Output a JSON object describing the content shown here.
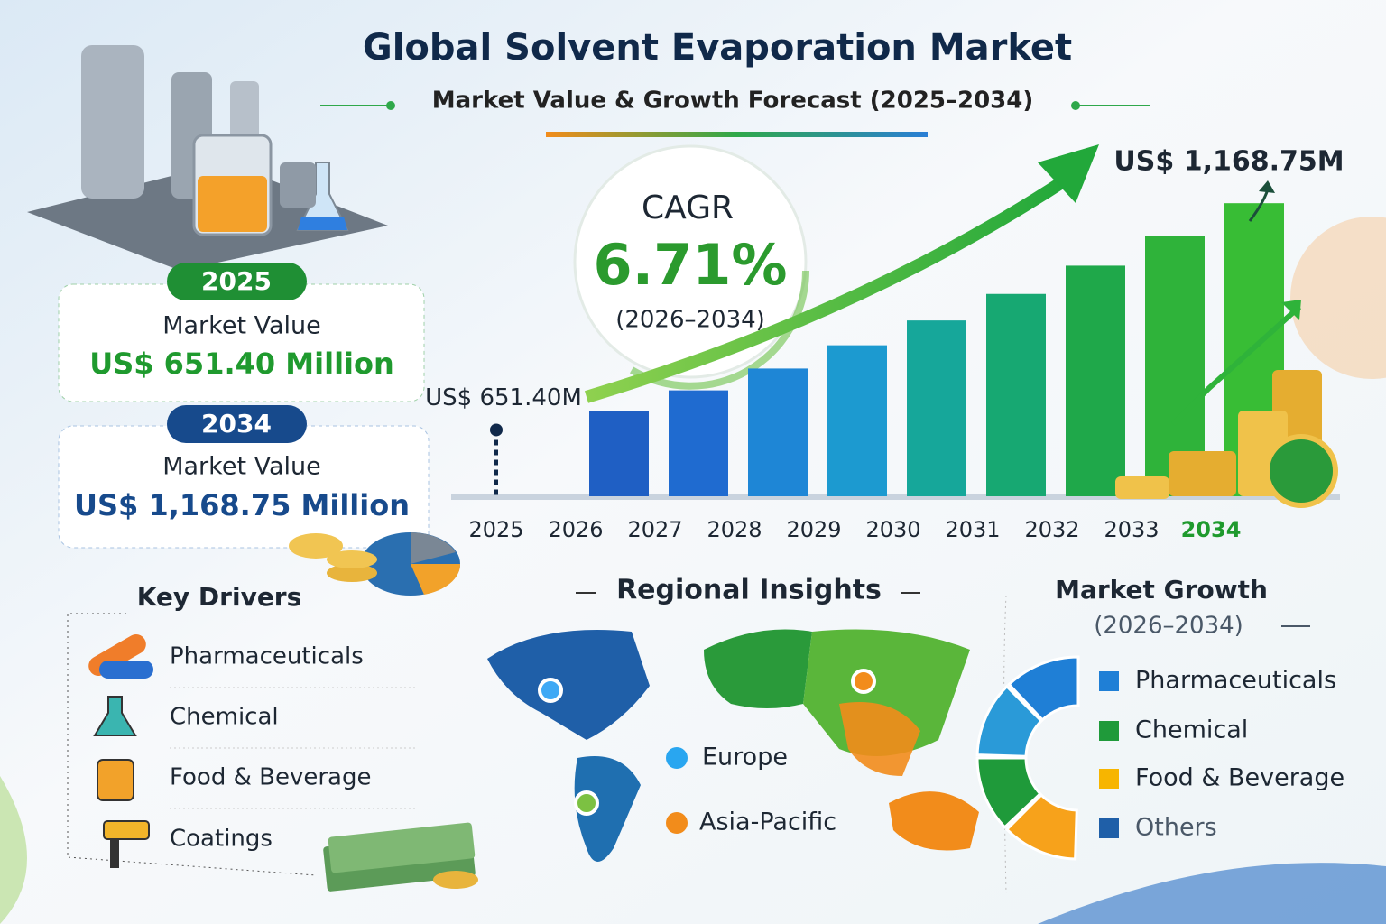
{
  "header": {
    "title": "Global Solvent Evaporation Market",
    "subtitle": "Market Value & Growth Forecast (2025–2034)"
  },
  "cagr": {
    "label": "CAGR",
    "value": "6.71%",
    "period": "(2026–2034)"
  },
  "cards": [
    {
      "year": "2025",
      "label": "Market Value",
      "value": "US$ 651.40 Million"
    },
    {
      "year": "2034",
      "label": "Market Value",
      "value": "US$ 1,168.75 Million"
    }
  ],
  "drivers": {
    "title": "Key Drivers",
    "items": [
      "Pharmaceuticals",
      "Chemical",
      "Food & Beverage",
      "Coatings"
    ]
  },
  "regions": {
    "title": "Regional Insights",
    "items": [
      "Europe",
      "Asia-Pacific"
    ]
  },
  "growth": {
    "title": "Market Growth",
    "period": "(2026–2034)",
    "items": [
      "Pharmaceuticals",
      "Chemical",
      "Food & Beverage",
      "Others"
    ]
  },
  "chart_data": {
    "type": "bar",
    "categories": [
      "2025",
      "2026",
      "2027",
      "2028",
      "2029",
      "2030",
      "2031",
      "2032",
      "2033",
      "2034"
    ],
    "values": [
      651.4,
      695.1,
      741.7,
      791.5,
      844.6,
      901.2,
      961.7,
      1026.2,
      1095.0,
      1168.75
    ],
    "value_labels": [
      "US$ 651.40M",
      null,
      null,
      null,
      null,
      null,
      null,
      null,
      null,
      "US$ 1,168.75M"
    ],
    "colors": [
      "#1b3f8f",
      "#1f5fc4",
      "#1f6bd0",
      "#1e86d6",
      "#1c9ad0",
      "#16a79a",
      "#17a872",
      "#1fa84a",
      "#2fb33a",
      "#38bd35"
    ],
    "ylim": [
      500,
      1200
    ]
  }
}
